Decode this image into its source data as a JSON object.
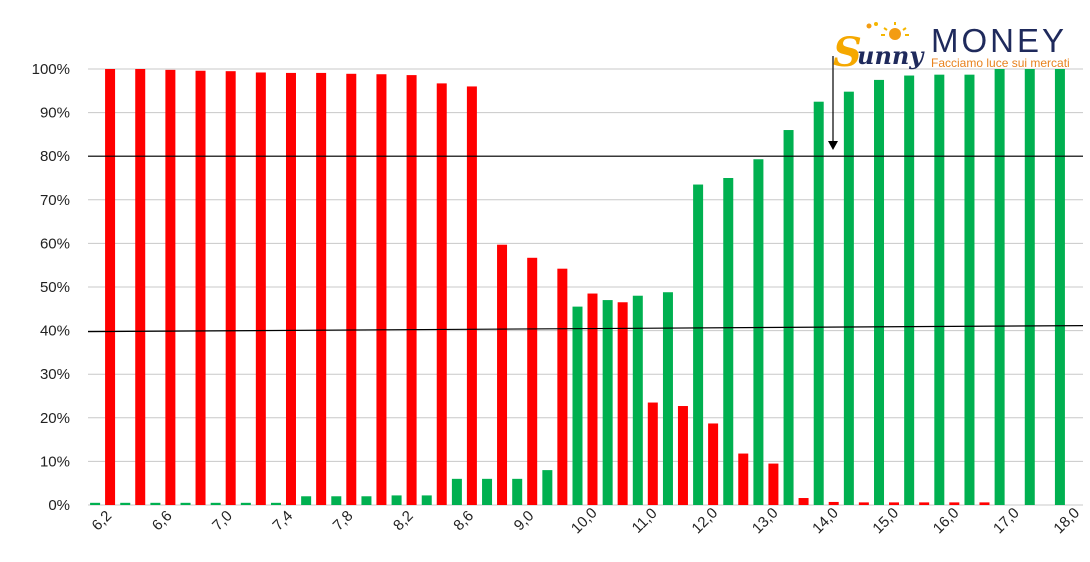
{
  "logo": {
    "brand": "MONEY",
    "tagline": "Facciamo luce sui mercati",
    "script_word": "unny"
  },
  "colors": {
    "green": "#00b050",
    "red": "#ff0000",
    "grid": "#c8c8c8",
    "reference": "#000000"
  },
  "chart_data": {
    "type": "bar",
    "x": [
      6.2,
      6.4,
      6.6,
      6.8,
      7.0,
      7.2,
      7.4,
      7.6,
      7.8,
      8.0,
      8.2,
      8.4,
      8.6,
      8.8,
      9.0,
      9.5,
      10.0,
      10.5,
      11.0,
      11.5,
      12.0,
      12.5,
      13.0,
      13.5,
      14.0,
      14.5,
      15.0,
      15.5,
      16.0,
      16.5,
      17.0,
      17.5,
      18.0
    ],
    "x_tick_labels": [
      "6,2",
      "6,6",
      "7,0",
      "7,4",
      "7,8",
      "8,2",
      "8,6",
      "9,0",
      "10,0",
      "11,0",
      "12,0",
      "13,0",
      "14,0",
      "15,0",
      "16,0",
      "17,0",
      "18,0"
    ],
    "labeled_x": [
      6.2,
      6.6,
      7.0,
      7.4,
      7.8,
      8.2,
      8.6,
      9.0,
      10.0,
      11.0,
      12.0,
      13.0,
      14.0,
      15.0,
      16.0,
      17.0,
      18.0
    ],
    "y_ticks": [
      "0%",
      "10%",
      "20%",
      "30%",
      "40%",
      "50%",
      "60%",
      "70%",
      "80%",
      "90%",
      "100%"
    ],
    "ylim": [
      0,
      100
    ],
    "grid": true,
    "reference_lines": [
      80,
      40
    ],
    "series": [
      {
        "color": "#00b050",
        "values": [
          0.5,
          0.5,
          0.5,
          0.5,
          0.5,
          0.5,
          0.5,
          2,
          2,
          2,
          2.2,
          2.2,
          6,
          6,
          6,
          8,
          45.5,
          47,
          48,
          48.8,
          73.5,
          75,
          79.3,
          86,
          92.5,
          94.8,
          97.5,
          98.5,
          98.7,
          98.7,
          100,
          100,
          100
        ]
      },
      {
        "color": "#ff0000",
        "values": [
          100,
          100,
          99.8,
          99.6,
          99.5,
          99.2,
          99.1,
          99.1,
          98.9,
          98.8,
          98.6,
          96.7,
          96,
          59.7,
          56.7,
          54.2,
          48.5,
          46.5,
          23.5,
          22.7,
          18.7,
          11.8,
          9.5,
          1.6,
          0.7,
          0.6,
          0.6,
          0.6,
          0.6,
          0.6,
          0,
          0,
          0
        ]
      }
    ]
  }
}
